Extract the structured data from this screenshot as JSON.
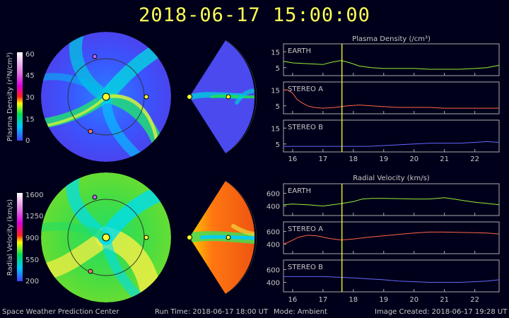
{
  "header": {
    "timestamp": "2018-06-17 15:00:00"
  },
  "footer": {
    "org": "Space Weather Prediction Center",
    "run_time": "Run Time: 2018-06-17 18:00 UT",
    "mode": "Mode: Ambient",
    "created": "Image Created: 2018-06-17 19:28 UT"
  },
  "colors": {
    "background": "#00001a",
    "title": "#ffff55",
    "earth_line": "#99ee33",
    "stereo_a_line": "#ff6644",
    "stereo_b_line": "#6666ff",
    "current_time_marker": "#ffff33",
    "earth_marker": "#ffff33",
    "stereo_a_marker": "#ff7777",
    "stereo_b_marker": "#bb66ff"
  },
  "density_colorbar": {
    "label": "Plasma Density (r²N/cm³)",
    "ticks": [
      "60",
      "45",
      "30",
      "15",
      "0"
    ]
  },
  "velocity_colorbar": {
    "label": "Radial Velocity (km/s)",
    "ticks": [
      "1600",
      "1250",
      "900",
      "550",
      "200"
    ]
  },
  "chart_data": [
    {
      "type": "line",
      "title": "Plasma Density (/cm³)",
      "xlim": [
        15.7,
        22.8
      ],
      "x_ticks": [
        "16",
        "17",
        "18",
        "19",
        "20",
        "21",
        "22"
      ],
      "current_time": 17.625,
      "panels": [
        {
          "name": "EARTH",
          "ylim": [
            0,
            20
          ],
          "yticks": [
            "15",
            "5"
          ],
          "x": [
            15.7,
            16.0,
            16.5,
            17.0,
            17.3,
            17.6,
            17.9,
            18.2,
            18.6,
            19.0,
            19.5,
            20.0,
            20.5,
            21.0,
            21.5,
            22.0,
            22.4,
            22.8
          ],
          "values": [
            9,
            8,
            7.5,
            7,
            8.5,
            9.5,
            8,
            6,
            5,
            4.5,
            4.5,
            4.5,
            4,
            4,
            4,
            4.5,
            5,
            6.5
          ]
        },
        {
          "name": "STEREO A",
          "ylim": [
            0,
            20
          ],
          "yticks": [
            "15",
            "5"
          ],
          "x": [
            15.7,
            15.85,
            16.0,
            16.15,
            16.3,
            16.5,
            16.7,
            17.0,
            17.4,
            17.8,
            18.2,
            18.6,
            19.0,
            19.5,
            20.0,
            20.5,
            21.0,
            21.5,
            22.0,
            22.8
          ],
          "values": [
            15,
            15,
            13,
            9,
            7,
            5,
            4,
            3.5,
            4,
            5,
            5.5,
            5,
            4.5,
            4,
            4,
            4,
            3.5,
            3.5,
            3.5,
            3.5
          ]
        },
        {
          "name": "STEREO B",
          "ylim": [
            0,
            20
          ],
          "yticks": [
            "15",
            "5"
          ],
          "x": [
            15.7,
            16.0,
            16.5,
            17.0,
            17.5,
            18.0,
            18.5,
            19.0,
            19.5,
            20.0,
            20.5,
            21.0,
            21.5,
            22.0,
            22.4,
            22.8
          ],
          "values": [
            3.5,
            3.5,
            3.5,
            3.5,
            3.5,
            3.5,
            3.5,
            4,
            4.5,
            5,
            5.5,
            5.5,
            5.5,
            6,
            6.5,
            6
          ]
        }
      ]
    },
    {
      "type": "line",
      "title": "Radial Velocity (km/s)",
      "xlim": [
        15.7,
        22.8
      ],
      "x_ticks": [
        "16",
        "17",
        "18",
        "19",
        "20",
        "21",
        "22"
      ],
      "current_time": 17.625,
      "panels": [
        {
          "name": "EARTH",
          "ylim": [
            250,
            750
          ],
          "yticks": [
            "600",
            "400"
          ],
          "x": [
            15.7,
            16.0,
            16.5,
            17.0,
            17.5,
            18.0,
            18.3,
            18.6,
            19.0,
            19.5,
            20.0,
            20.5,
            21.0,
            21.3,
            21.7,
            22.0,
            22.4,
            22.8
          ],
          "values": [
            420,
            430,
            420,
            400,
            430,
            470,
            510,
            520,
            520,
            515,
            510,
            510,
            530,
            510,
            480,
            460,
            440,
            420
          ]
        },
        {
          "name": "STEREO A",
          "ylim": [
            250,
            750
          ],
          "yticks": [
            "600",
            "400"
          ],
          "x": [
            15.7,
            15.9,
            16.2,
            16.5,
            16.8,
            17.2,
            17.6,
            18.0,
            18.5,
            19.0,
            19.5,
            20.0,
            20.5,
            21.0,
            21.5,
            22.0,
            22.4,
            22.8
          ],
          "values": [
            400,
            440,
            510,
            540,
            530,
            490,
            465,
            480,
            510,
            530,
            555,
            575,
            590,
            590,
            585,
            580,
            575,
            560
          ]
        },
        {
          "name": "STEREO B",
          "ylim": [
            250,
            750
          ],
          "yticks": [
            "600",
            "400"
          ],
          "x": [
            15.7,
            16.0,
            16.5,
            17.0,
            17.5,
            18.0,
            18.5,
            19.0,
            19.5,
            20.0,
            20.5,
            21.0,
            21.5,
            22.0,
            22.4,
            22.8
          ],
          "values": [
            490,
            490,
            490,
            490,
            480,
            470,
            455,
            440,
            420,
            410,
            400,
            400,
            400,
            410,
            420,
            440
          ]
        }
      ]
    }
  ]
}
